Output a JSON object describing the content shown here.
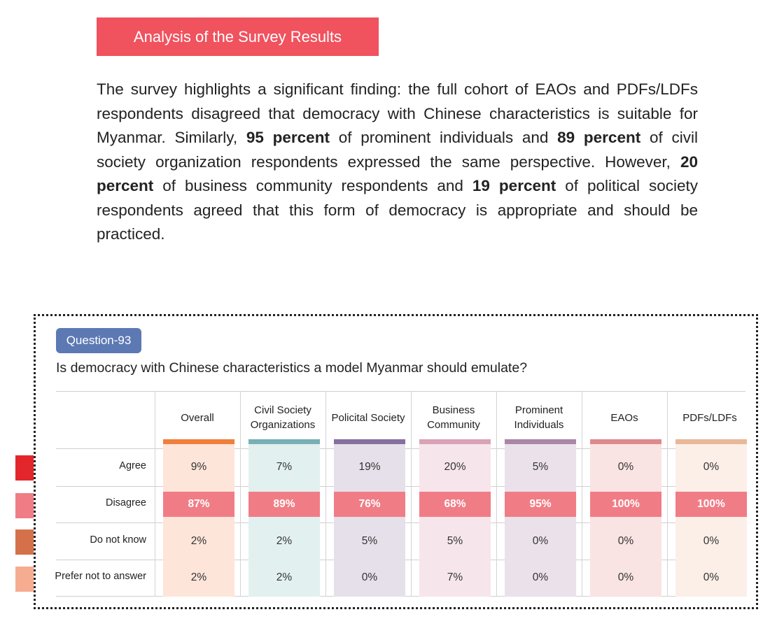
{
  "section_title": "Analysis of the Survey Results",
  "paragraph": [
    {
      "t": "The survey highlights a significant finding: the full cohort of EAOs and PDFs/LDFs respondents disagreed that democracy with Chinese characteristics is suitable for Myanmar. Similarly, ",
      "b": false
    },
    {
      "t": "95 percent",
      "b": true
    },
    {
      "t": " of prominent individuals and ",
      "b": false
    },
    {
      "t": "89 percent",
      "b": true
    },
    {
      "t": " of civil society organization respondents expressed the same perspective. However, ",
      "b": false
    },
    {
      "t": "20 percent",
      "b": true
    },
    {
      "t": " of business community respondents and ",
      "b": false
    },
    {
      "t": "19 percent",
      "b": true
    },
    {
      "t": " of political society respondents agreed that this form of democracy is appropriate and should be practiced.",
      "b": false
    }
  ],
  "question": {
    "badge": "Question-93",
    "text": "Is democracy with Chinese characteristics a model Myanmar should emulate?"
  },
  "table": {
    "columns": [
      {
        "label": "Overall",
        "bar": "#f07f3c",
        "bg": "#fde5da"
      },
      {
        "label": "Civil Society Organizations",
        "bar": "#78b0b5",
        "bg": "#e3f0f0"
      },
      {
        "label": "Policital Society",
        "bar": "#86709f",
        "bg": "#e6e0ea"
      },
      {
        "label": "Business Community",
        "bar": "#d9a2b6",
        "bg": "#f6e6ec"
      },
      {
        "label": "Prominent Individuals",
        "bar": "#ab86a8",
        "bg": "#ebe1ea"
      },
      {
        "label": "EAOs",
        "bar": "#de8a8c",
        "bg": "#fae3e3"
      },
      {
        "label": "PDFs/LDFs",
        "bar": "#e8b898",
        "bg": "#fcefe8"
      }
    ],
    "rows": [
      {
        "label": "Agree",
        "legend": "#e3262b",
        "values": [
          "9%",
          "7%",
          "19%",
          "20%",
          "5%",
          "0%",
          "0%"
        ]
      },
      {
        "label": "Disagree",
        "legend": "#f07d86",
        "values": [
          "87%",
          "89%",
          "76%",
          "68%",
          "95%",
          "100%",
          "100%"
        ]
      },
      {
        "label": "Do not know",
        "legend": "#d5714a",
        "values": [
          "2%",
          "2%",
          "5%",
          "5%",
          "0%",
          "0%",
          "0%"
        ]
      },
      {
        "label": "Prefer not to answer",
        "legend": "#f6ac90",
        "values": [
          "2%",
          "2%",
          "0%",
          "7%",
          "0%",
          "0%",
          "0%"
        ]
      }
    ]
  }
}
